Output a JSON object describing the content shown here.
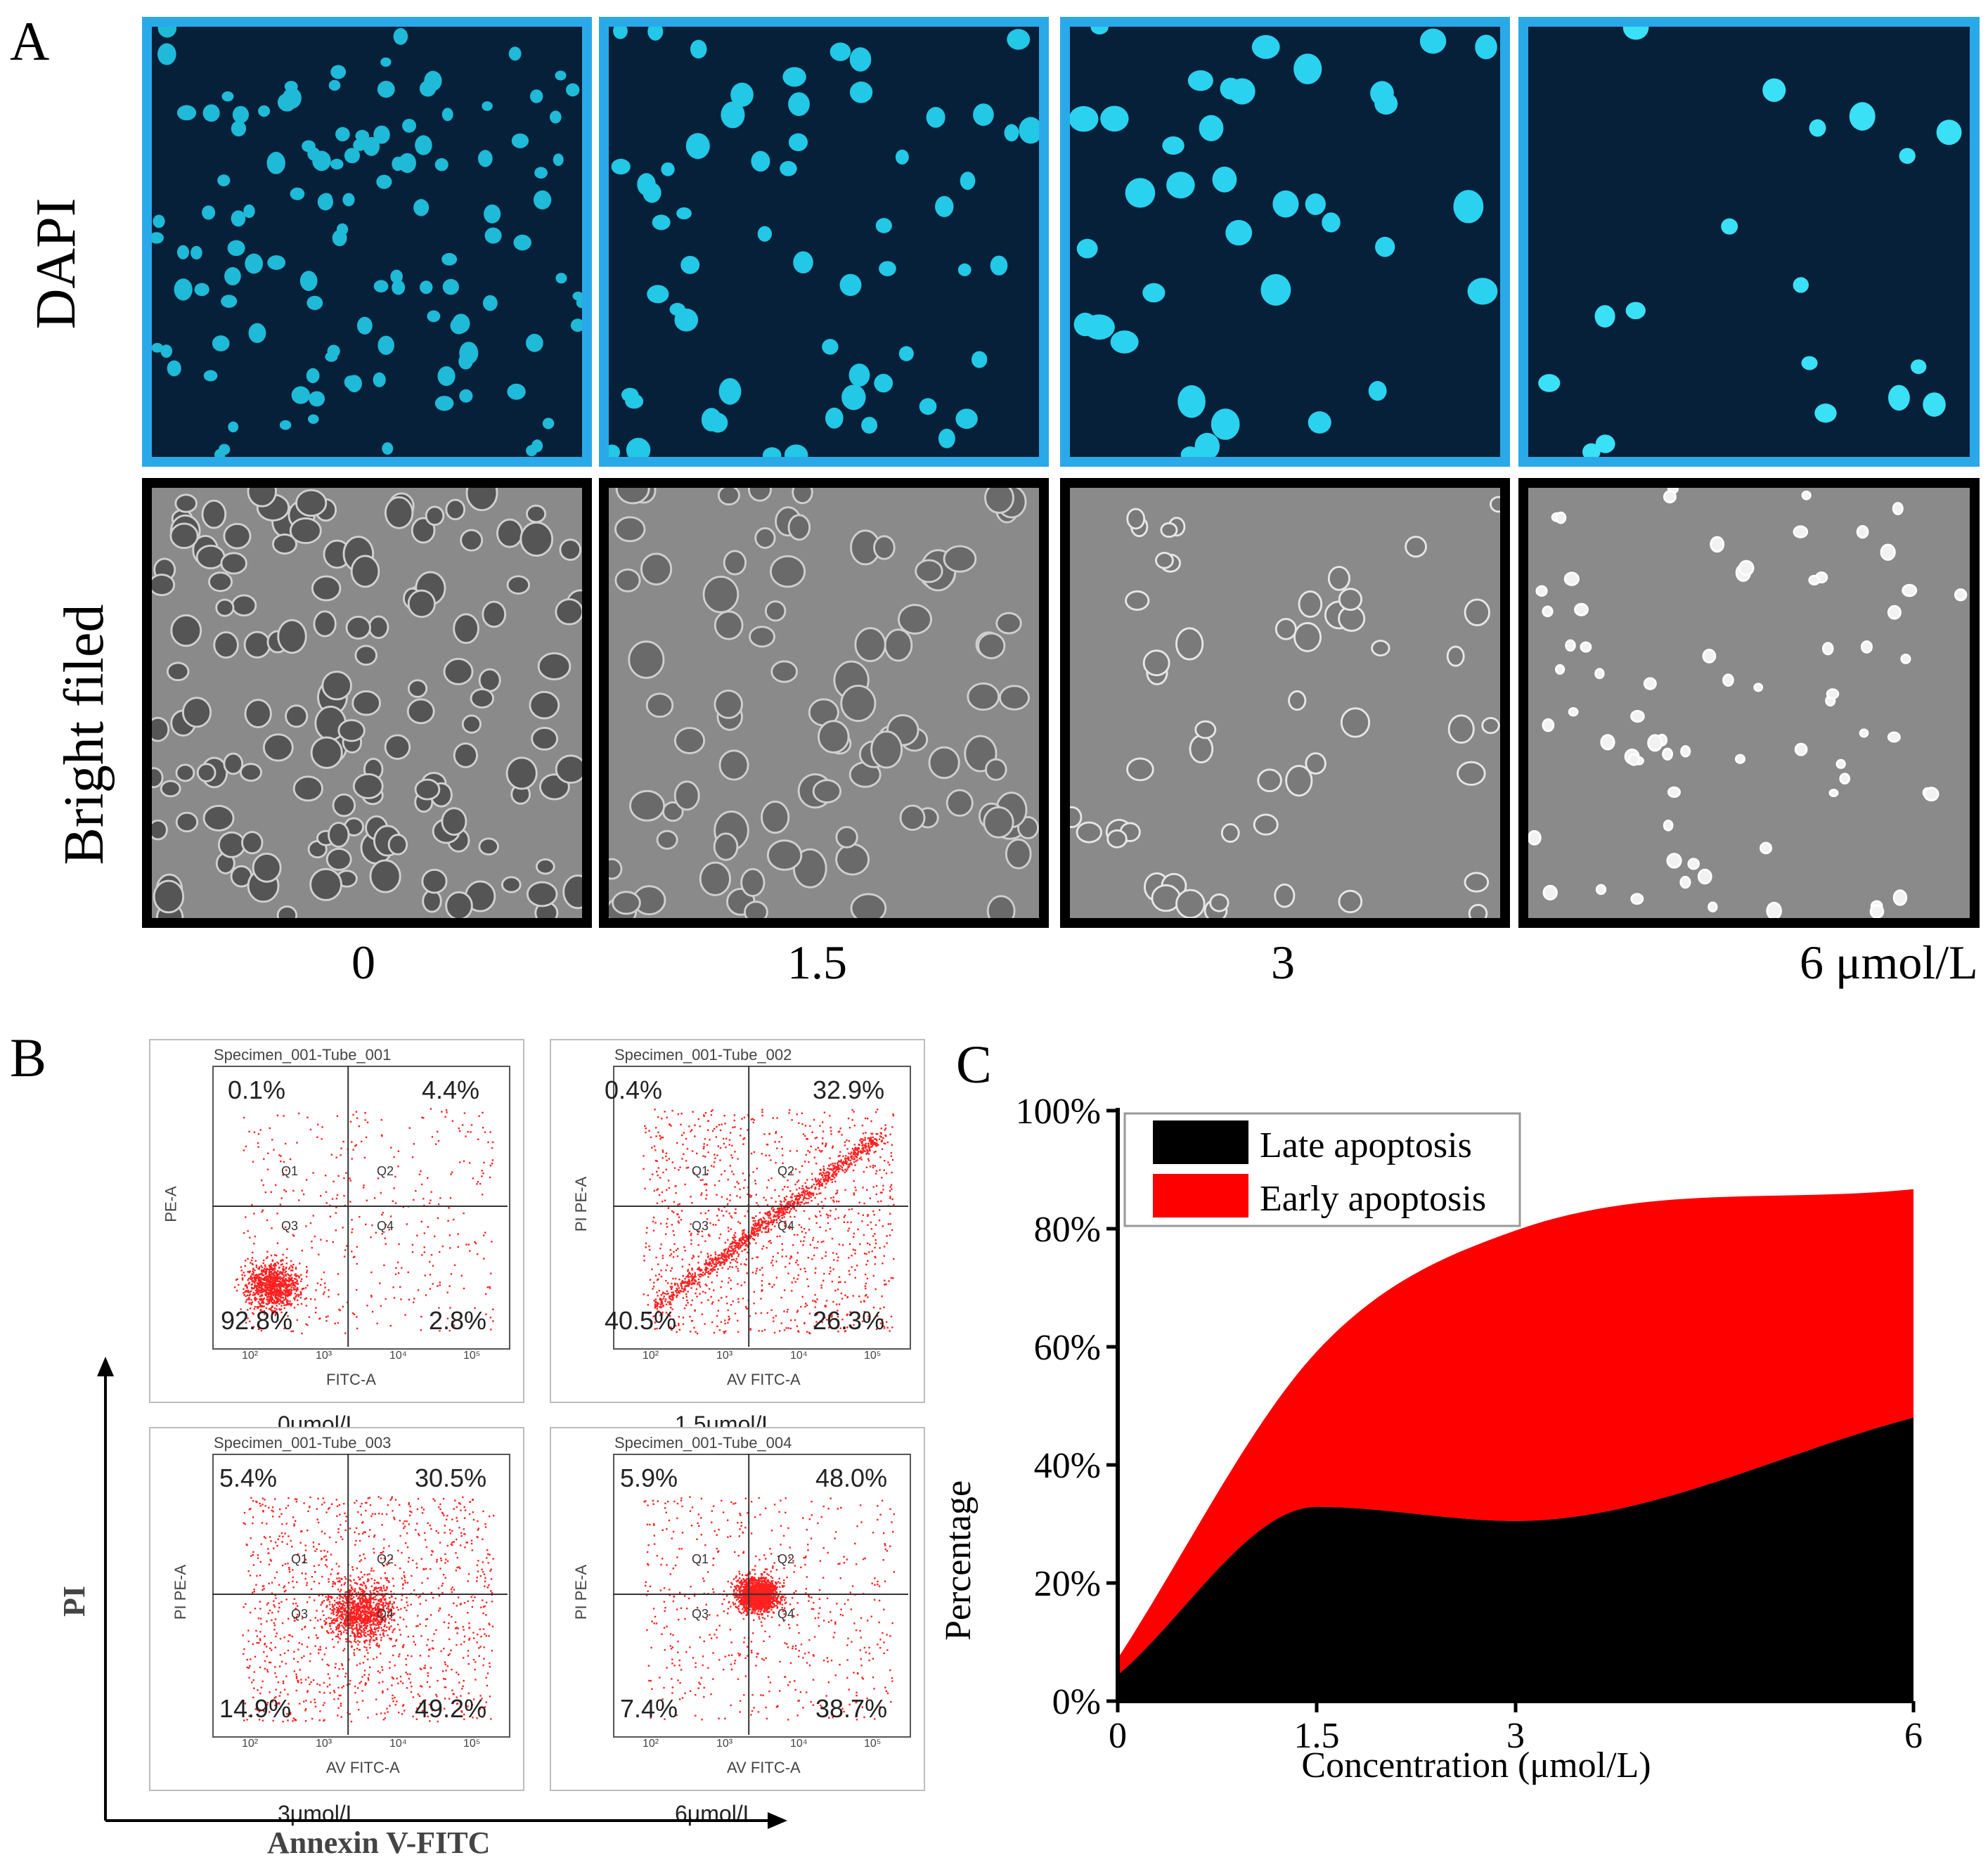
{
  "panel_a": {
    "letter": "A",
    "row_labels": {
      "dapi": "DAPI",
      "bright": "Bright filed"
    },
    "concentrations": [
      "0",
      "1.5",
      "3",
      "6  μmol/L"
    ]
  },
  "panel_b": {
    "letter": "B",
    "y_axis_title": "PI",
    "x_axis_title": "Annexin  V-FITC",
    "plots": [
      {
        "tube": "Specimen_001-Tube_001",
        "q1": "0.1%",
        "q2": "4.4%",
        "q3": "92.8%",
        "q4": "2.8%",
        "xlabel": "FITC-A",
        "ylabel": "PE-A",
        "caption": "0μmol/L"
      },
      {
        "tube": "Specimen_001-Tube_002",
        "q1": "0.4%",
        "q2": "32.9%",
        "q3": "40.5%",
        "q4": "26.3%",
        "xlabel": "AV FITC-A",
        "ylabel": "PI PE-A",
        "caption": "1.5μmol/L"
      },
      {
        "tube": "Specimen_001-Tube_003",
        "q1": "5.4%",
        "q2": "30.5%",
        "q3": "14.9%",
        "q4": "49.2%",
        "xlabel": "AV FITC-A",
        "ylabel": "PI PE-A",
        "caption": "3μmol/L"
      },
      {
        "tube": "Specimen_001-Tube_004",
        "q1": "5.9%",
        "q2": "48.0%",
        "q3": "7.4%",
        "q4": "38.7%",
        "xlabel": "AV FITC-A",
        "ylabel": "PI PE-A",
        "caption": "6μmol/L"
      }
    ],
    "quadrant_names": [
      "Q1",
      "Q2",
      "Q3",
      "Q4"
    ],
    "tick_labels": [
      "10²",
      "10³",
      "10⁴",
      "10⁵"
    ]
  },
  "colors": {
    "dapi_border": "#2aa9e8",
    "late": "#000000",
    "early": "#ff0000",
    "dots": "#ff2020"
  },
  "chart_data": {
    "type": "area",
    "panel_letter": "C",
    "title": "",
    "xlabel": "Concentration (μmol/L)",
    "ylabel": "Percentage",
    "x_ticks": [
      "0",
      "1.5",
      "3",
      "6"
    ],
    "y_ticks": [
      "0%",
      "20%",
      "40%",
      "60%",
      "80%",
      "100%"
    ],
    "xlim": [
      0,
      6
    ],
    "ylim": [
      0,
      100
    ],
    "x": [
      0,
      1.5,
      3,
      6
    ],
    "series": [
      {
        "name": "Late apoptosis",
        "values": [
          4.4,
          32.9,
          30.5,
          48.0
        ],
        "color": "#000000"
      },
      {
        "name": "Early apoptosis",
        "values": [
          2.8,
          26.3,
          49.2,
          38.7
        ],
        "color": "#ff0000"
      }
    ],
    "stacked": true,
    "legend_position": "top-left"
  }
}
